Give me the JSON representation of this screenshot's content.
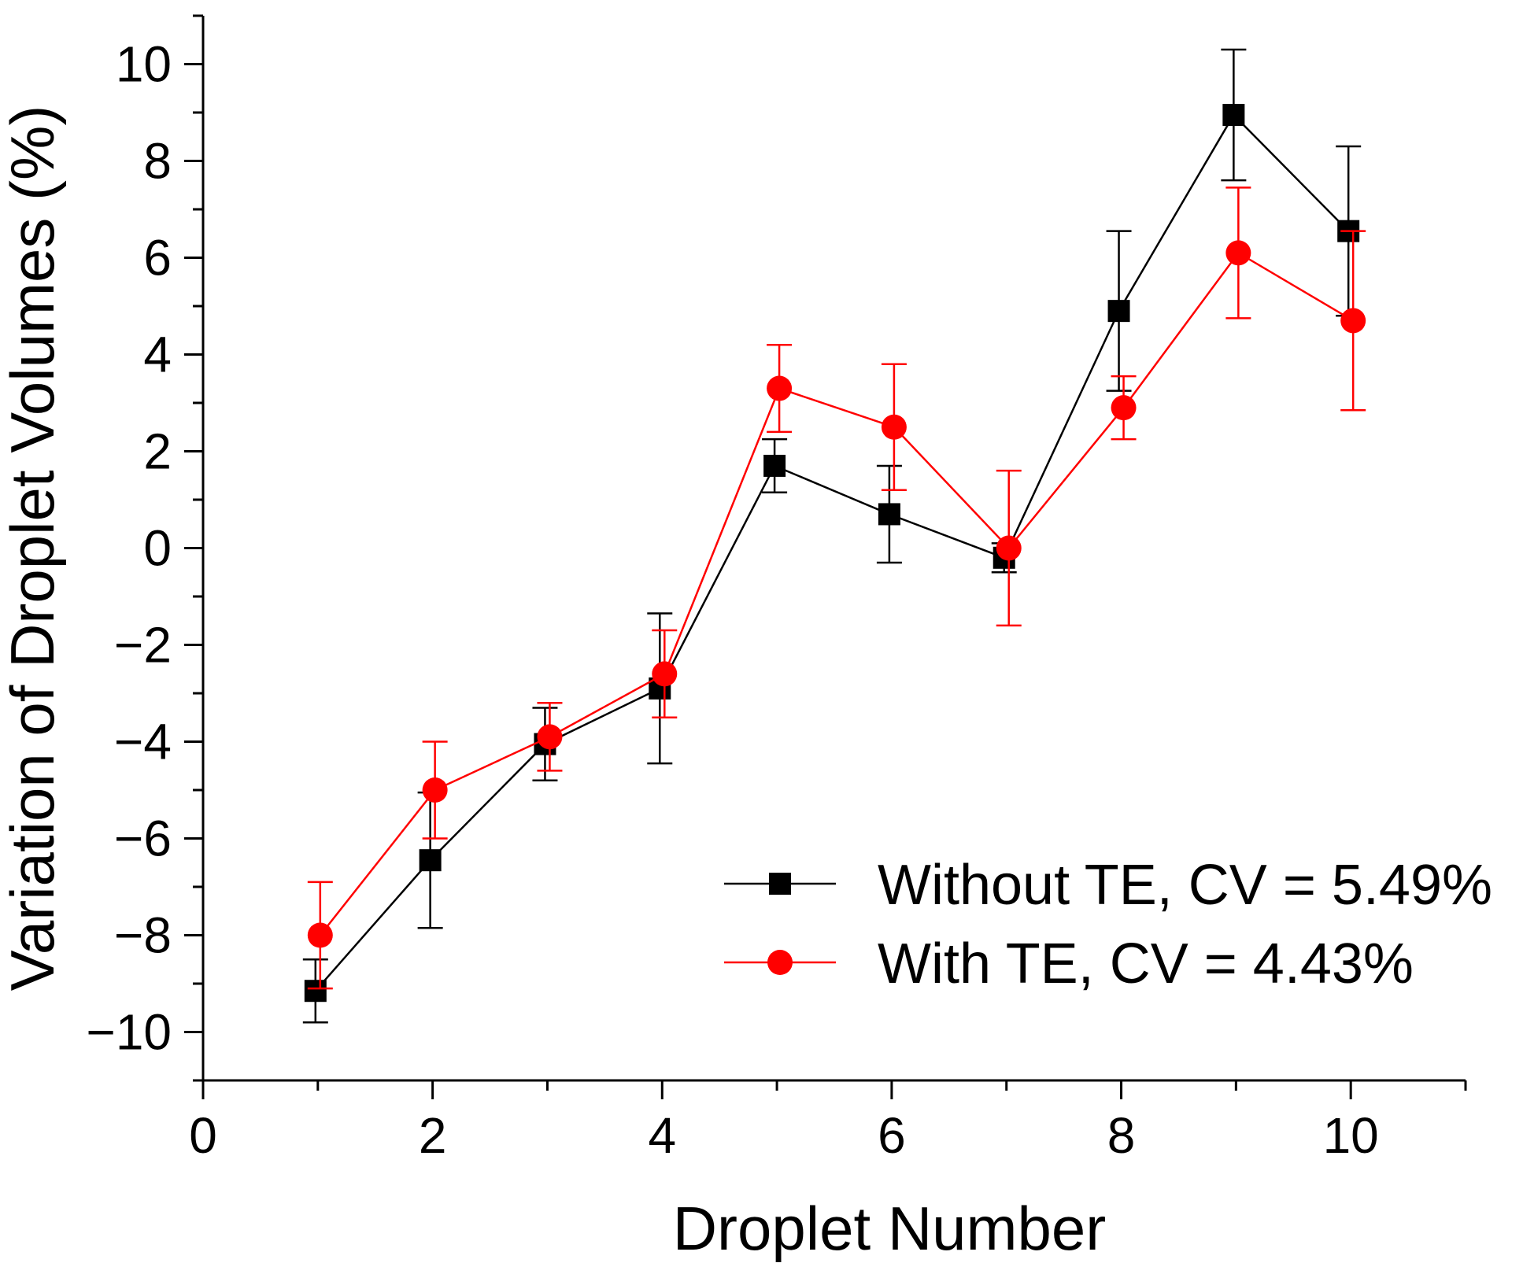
{
  "chart_data": {
    "type": "line",
    "title": "",
    "xlabel": "Droplet Number",
    "ylabel": "Variation of Droplet Volumes (%)",
    "xlim": [
      0,
      11
    ],
    "ylim": [
      -11,
      11
    ],
    "xticks": [
      0,
      2,
      4,
      6,
      8,
      10
    ],
    "yticks": [
      -10,
      -8,
      -6,
      -4,
      -2,
      0,
      2,
      4,
      6,
      8,
      10
    ],
    "xtick_labels": [
      "0",
      "2",
      "4",
      "6",
      "8",
      "10"
    ],
    "ytick_labels": [
      "−10",
      "−8",
      "−6",
      "−4",
      "−2",
      "0",
      "2",
      "4",
      "6",
      "8",
      "10"
    ],
    "x": [
      1,
      2,
      3,
      4,
      5,
      6,
      7,
      8,
      9,
      10
    ],
    "legend_position": "lower-right",
    "series": [
      {
        "name": "Without TE, CV = 5.49%",
        "color": "#000000",
        "marker": "square",
        "values": [
          -9.15,
          -6.45,
          -4.05,
          -2.9,
          1.7,
          0.7,
          -0.2,
          4.9,
          8.95,
          6.55
        ],
        "errors": [
          0.65,
          1.4,
          0.75,
          1.55,
          0.55,
          1.0,
          0.3,
          1.65,
          1.35,
          1.75
        ]
      },
      {
        "name": "With TE, CV = 4.43%",
        "color": "#ff0000",
        "marker": "circle",
        "values": [
          -8.0,
          -5.0,
          -3.9,
          -2.6,
          3.3,
          2.5,
          0.0,
          2.9,
          6.1,
          4.7
        ],
        "errors": [
          1.1,
          1.0,
          0.7,
          0.9,
          0.9,
          1.3,
          1.6,
          0.65,
          1.35,
          1.85
        ]
      }
    ]
  }
}
